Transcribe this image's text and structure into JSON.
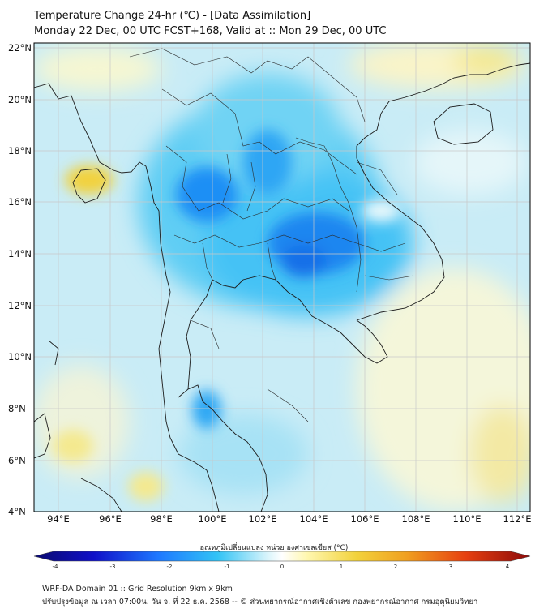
{
  "header": {
    "title": "Temperature Change 24-hr (℃) - [Data Assimilation]",
    "subtitle": "Monday 22 Dec, 00 UTC FCST+168, Valid at :: Mon 29 Dec, 00 UTC"
  },
  "map": {
    "lat_labels": [
      "22°N",
      "20°N",
      "18°N",
      "16°N",
      "14°N",
      "12°N",
      "10°N",
      "8°N",
      "6°N",
      "4°N"
    ],
    "lon_labels": [
      "94°E",
      "96°E",
      "98°E",
      "100°E",
      "102°E",
      "104°E",
      "106°E",
      "108°E",
      "110°E",
      "112°E"
    ]
  },
  "colorbar": {
    "title": "อุณหภูมิเปลี่ยนแปลง หน่วย องศาเซลเซียส (°C)",
    "ticks": [
      "-4",
      "-3",
      "-2",
      "-1",
      "0",
      "1",
      "2",
      "3",
      "4"
    ],
    "min": -4,
    "max": 4,
    "colors": [
      "#0a0a6e",
      "#1010c8",
      "#1e78ff",
      "#32c3f5",
      "#d8f4fb",
      "#ffffff",
      "#fff7b0",
      "#f2d23c",
      "#f0a020",
      "#e64010",
      "#8c0a0a"
    ]
  },
  "footer": {
    "line1": "WRF-DA Domain 01 :: Grid Resolution 9km x 9km",
    "line2": "ปรับปรุงข้อมูล ณ เวลา 07:00น. วัน จ. ที่ 22 ธ.ค. 2568 -- © ส่วนพยากรณ์อากาศเชิงตัวเลข กองพยากรณ์อากาศ กรมอุตุนิยมวิทยา"
  }
}
